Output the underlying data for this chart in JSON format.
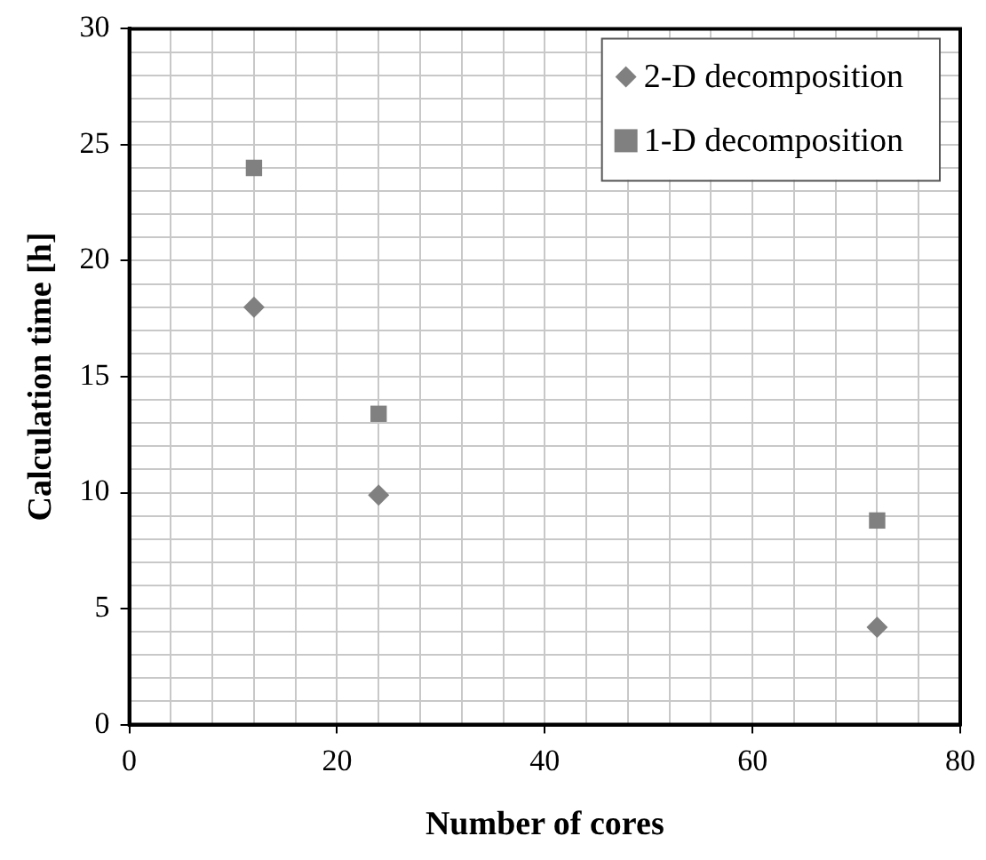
{
  "chart_data": {
    "type": "scatter",
    "xlabel": "Number of cores",
    "ylabel": "Calculation time [h]",
    "xlim": [
      0,
      80
    ],
    "xticks": [
      0,
      {
        "value": 4,
        "label": null
      },
      {
        "value": 8,
        "label": null
      },
      {
        "value": 12,
        "label": null
      },
      {
        "value": 16,
        "label": null
      },
      20,
      {
        "value": 24,
        "label": null
      },
      {
        "value": 28,
        "label": null
      },
      {
        "value": 32,
        "label": null
      },
      {
        "value": 36,
        "label": null
      },
      40,
      {
        "value": 44,
        "label": null
      },
      {
        "value": 48,
        "label": null
      },
      {
        "value": 52,
        "label": null
      },
      {
        "value": 56,
        "label": null
      },
      60,
      {
        "value": 64,
        "label": null
      },
      {
        "value": 68,
        "label": null
      },
      {
        "value": 72,
        "label": null
      },
      {
        "value": 76,
        "label": null
      },
      80
    ],
    "ylim": [
      0,
      30
    ],
    "yticks": [
      0,
      {
        "value": 1,
        "label": null
      },
      {
        "value": 2,
        "label": null
      },
      {
        "value": 3,
        "label": null
      },
      {
        "value": 4,
        "label": null
      },
      5,
      {
        "value": 6,
        "label": null
      },
      {
        "value": 7,
        "label": null
      },
      {
        "value": 8,
        "label": null
      },
      {
        "value": 9,
        "label": null
      },
      10,
      {
        "value": 11,
        "label": null
      },
      {
        "value": 12,
        "label": null
      },
      {
        "value": 13,
        "label": null
      },
      {
        "value": 14,
        "label": null
      },
      15,
      {
        "value": 16,
        "label": null
      },
      {
        "value": 17,
        "label": null
      },
      {
        "value": 18,
        "label": null
      },
      {
        "value": 19,
        "label": null
      },
      20,
      {
        "value": 21,
        "label": null
      },
      {
        "value": 22,
        "label": null
      },
      {
        "value": 23,
        "label": null
      },
      {
        "value": 24,
        "label": null
      },
      25,
      {
        "value": 26,
        "label": null
      },
      {
        "value": 27,
        "label": null
      },
      {
        "value": 28,
        "label": null
      },
      {
        "value": 29,
        "label": null
      },
      30
    ],
    "grid": true,
    "legend": "top right",
    "series": [
      {
        "name": "2-D decomposition",
        "color": "#808080",
        "marker": "diamond",
        "x": [
          12,
          24,
          72
        ],
        "values": [
          18,
          9.9,
          4.2
        ]
      },
      {
        "name": "1-D decomposition",
        "color": "#808080",
        "marker": "square",
        "x": [
          12,
          24,
          72
        ],
        "values": [
          24,
          13.4,
          8.8
        ]
      }
    ]
  }
}
